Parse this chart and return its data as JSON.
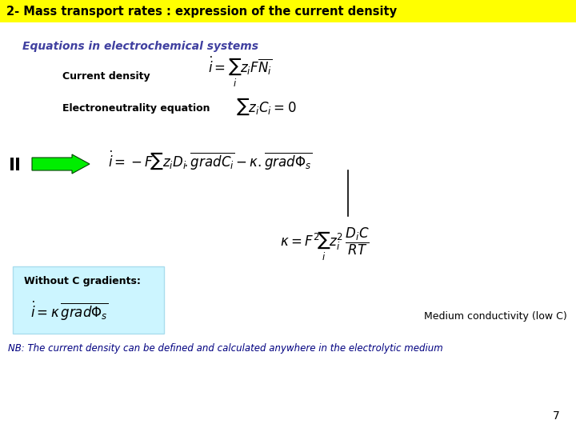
{
  "title": "2- Mass transport rates : expression of the current density",
  "title_bg": "#ffff00",
  "title_color": "#000000",
  "subtitle": "Equations in electrochemical systems",
  "subtitle_color": "#4040a0",
  "current_density_label": "Current density",
  "electroneutrality_label": "Electroneutrality equation",
  "without_c_label": "Without C gradients:",
  "medium_conductivity": "Medium conductivity (low C)",
  "nb_text": "NB: The current density can be defined and calculated anywhere in the electrolytic medium",
  "page_number": "7",
  "arrow_color": "#00ee00",
  "arrow_edge": "#004400",
  "box_color": "#ccf5ff",
  "box_edge": "#aaddee",
  "nb_color": "#000080",
  "background_color": "#ffffff"
}
